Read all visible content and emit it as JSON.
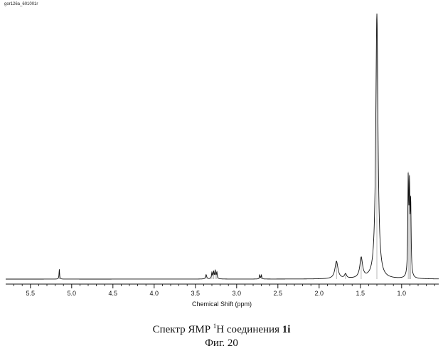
{
  "file_label": "gor126a_601001r",
  "caption": {
    "prefix": "Спектр ЯМР ",
    "superscript": "1",
    "nucleus": "H",
    "middle": " соединения ",
    "compound": "1i",
    "figure": "Фиг. 20"
  },
  "chart_data": {
    "type": "line",
    "title": "",
    "xlabel": "Chemical Shift (ppm)",
    "ylabel": "",
    "xlim": [
      5.8,
      0.55
    ],
    "x_reversed": true,
    "ylim": [
      0,
      1.0
    ],
    "grid": false,
    "xticks": [
      5.5,
      5.0,
      4.5,
      4.0,
      3.5,
      3.0,
      2.5,
      2.0,
      1.5,
      1.0
    ],
    "xtick_labels": [
      "5.5",
      "5.0",
      "4.5",
      "4.0",
      "3.5",
      "3.0",
      "2.5",
      "2.0",
      "1.5",
      "1.0"
    ],
    "peaks": [
      {
        "shift": 5.15,
        "intensity": 0.036,
        "width": 0.004
      },
      {
        "shift": 3.37,
        "intensity": 0.016,
        "width": 0.008
      },
      {
        "shift": 3.3,
        "intensity": 0.022,
        "width": 0.006
      },
      {
        "shift": 3.28,
        "intensity": 0.026,
        "width": 0.006
      },
      {
        "shift": 3.26,
        "intensity": 0.03,
        "width": 0.006
      },
      {
        "shift": 3.24,
        "intensity": 0.024,
        "width": 0.006
      },
      {
        "shift": 2.72,
        "intensity": 0.016,
        "width": 0.005
      },
      {
        "shift": 2.7,
        "intensity": 0.014,
        "width": 0.005
      },
      {
        "shift": 1.79,
        "intensity": 0.064,
        "width": 0.022
      },
      {
        "shift": 1.68,
        "intensity": 0.016,
        "width": 0.015
      },
      {
        "shift": 1.49,
        "intensity": 0.074,
        "width": 0.02
      },
      {
        "shift": 1.3,
        "intensity": 0.97,
        "width": 0.016
      },
      {
        "shift": 0.92,
        "intensity": 0.34,
        "width": 0.006
      },
      {
        "shift": 0.905,
        "intensity": 0.3,
        "width": 0.006
      },
      {
        "shift": 0.89,
        "intensity": 0.25,
        "width": 0.006
      }
    ]
  }
}
